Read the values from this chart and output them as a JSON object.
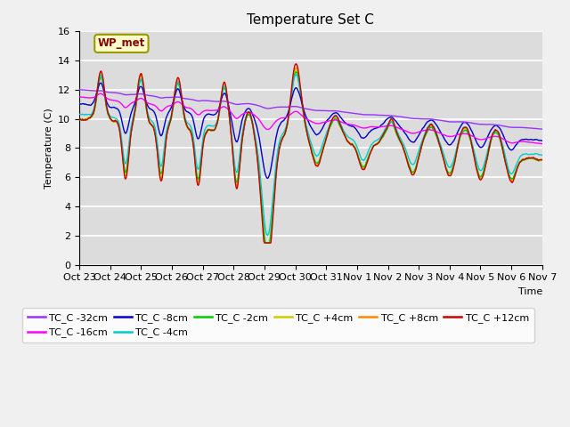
{
  "title": "Temperature Set C",
  "xlabel": "Time",
  "ylabel": "Temperature (C)",
  "ylim": [
    0,
    16
  ],
  "yticks": [
    0,
    2,
    4,
    6,
    8,
    10,
    12,
    14,
    16
  ],
  "x_labels": [
    "Oct 23",
    "Oct 24",
    "Oct 25",
    "Oct 26",
    "Oct 27",
    "Oct 28",
    "Oct 29",
    "Oct 30",
    "Oct 31",
    "Nov 1",
    "Nov 2",
    "Nov 3",
    "Nov 4",
    "Nov 5",
    "Nov 6",
    "Nov 7"
  ],
  "annotation_text": "WP_met",
  "series_colors": {
    "TC_C -32cm": "#9933ff",
    "TC_C -16cm": "#ff00ff",
    "TC_C -8cm": "#0000cc",
    "TC_C -4cm": "#00cccc",
    "TC_C -2cm": "#00cc00",
    "TC_C +4cm": "#cccc00",
    "TC_C +8cm": "#ff8800",
    "TC_C +12cm": "#cc0000"
  },
  "background_color": "#dcdcdc",
  "fig_facecolor": "#f0f0f0",
  "grid_color": "#ffffff",
  "title_fontsize": 11,
  "legend_fontsize": 8,
  "axis_fontsize": 8
}
